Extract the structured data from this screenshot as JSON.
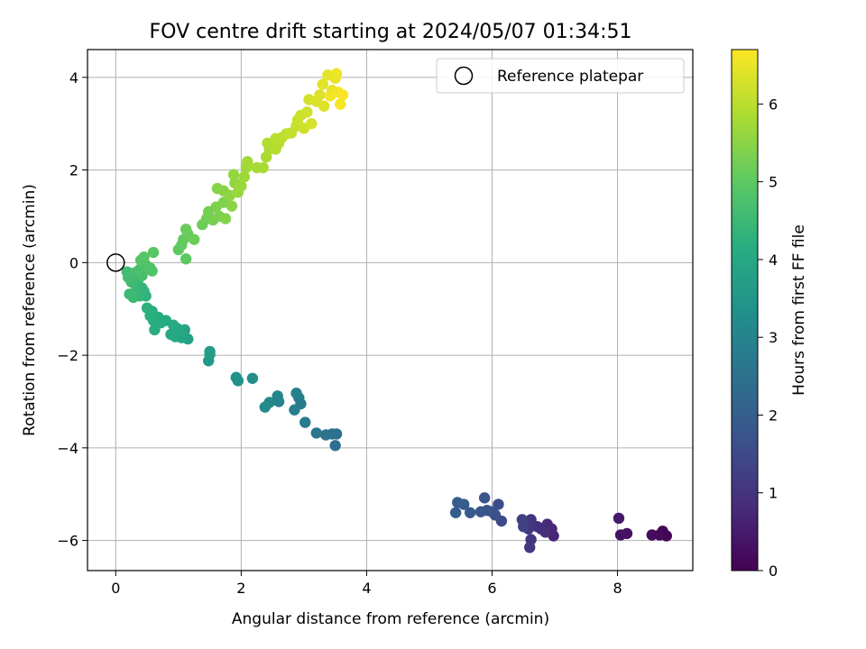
{
  "chart_data": {
    "type": "scatter",
    "title": "FOV centre drift starting at 2024/05/07 01:34:51",
    "xlabel": "Angular distance from reference (arcmin)",
    "ylabel": "Rotation from reference (arcmin)",
    "xlim": [
      -0.45,
      9.2
    ],
    "ylim": [
      -6.65,
      4.6
    ],
    "xticks": [
      0,
      2,
      4,
      6,
      8
    ],
    "yticks": [
      -6,
      -4,
      -2,
      0,
      2,
      4
    ],
    "xtick_labels": [
      "0",
      "2",
      "4",
      "6",
      "8"
    ],
    "ytick_labels": [
      "−6",
      "−4",
      "−2",
      "0",
      "2",
      "4"
    ],
    "grid": true,
    "legend": {
      "placement": "top-right",
      "entries": [
        {
          "label": "Reference platepar",
          "marker": "open-circle"
        }
      ]
    },
    "colorbar": {
      "label": "Hours from first FF file",
      "colormap": "viridis",
      "range": [
        0,
        6.7
      ],
      "ticks": [
        0,
        1,
        2,
        3,
        4,
        5,
        6
      ],
      "tick_labels": [
        "0",
        "1",
        "2",
        "3",
        "4",
        "5",
        "6"
      ]
    },
    "reference_point": {
      "x": 0,
      "y": 0
    },
    "points": [
      {
        "x": 8.78,
        "y": -5.9,
        "t": 0.05
      },
      {
        "x": 8.72,
        "y": -5.8,
        "t": 0.1
      },
      {
        "x": 8.67,
        "y": -5.88,
        "t": 0.15
      },
      {
        "x": 8.55,
        "y": -5.88,
        "t": 0.2
      },
      {
        "x": 8.15,
        "y": -5.85,
        "t": 0.3
      },
      {
        "x": 8.05,
        "y": -5.88,
        "t": 0.35
      },
      {
        "x": 8.02,
        "y": -5.52,
        "t": 0.45
      },
      {
        "x": 6.98,
        "y": -5.9,
        "t": 0.7
      },
      {
        "x": 6.95,
        "y": -5.75,
        "t": 0.75
      },
      {
        "x": 6.88,
        "y": -5.65,
        "t": 0.8
      },
      {
        "x": 6.85,
        "y": -5.82,
        "t": 0.85
      },
      {
        "x": 6.78,
        "y": -5.75,
        "t": 0.9
      },
      {
        "x": 6.72,
        "y": -5.7,
        "t": 0.95
      },
      {
        "x": 6.62,
        "y": -5.55,
        "t": 1.0
      },
      {
        "x": 6.62,
        "y": -5.98,
        "t": 1.05
      },
      {
        "x": 6.6,
        "y": -6.15,
        "t": 1.1
      },
      {
        "x": 6.58,
        "y": -5.75,
        "t": 1.15
      },
      {
        "x": 6.52,
        "y": -5.62,
        "t": 1.2
      },
      {
        "x": 6.5,
        "y": -5.7,
        "t": 1.25
      },
      {
        "x": 6.48,
        "y": -5.55,
        "t": 1.3
      },
      {
        "x": 6.15,
        "y": -5.58,
        "t": 1.5
      },
      {
        "x": 6.1,
        "y": -5.22,
        "t": 1.55
      },
      {
        "x": 6.05,
        "y": -5.45,
        "t": 1.6
      },
      {
        "x": 6.0,
        "y": -5.38,
        "t": 1.65
      },
      {
        "x": 5.92,
        "y": -5.35,
        "t": 1.7
      },
      {
        "x": 5.88,
        "y": -5.08,
        "t": 1.75
      },
      {
        "x": 5.82,
        "y": -5.38,
        "t": 1.8
      },
      {
        "x": 5.65,
        "y": -5.4,
        "t": 1.85
      },
      {
        "x": 5.55,
        "y": -5.22,
        "t": 1.9
      },
      {
        "x": 5.45,
        "y": -5.18,
        "t": 1.95
      },
      {
        "x": 5.42,
        "y": -5.4,
        "t": 2.0
      },
      {
        "x": 3.5,
        "y": -3.95,
        "t": 2.4
      },
      {
        "x": 3.52,
        "y": -3.7,
        "t": 2.45
      },
      {
        "x": 3.45,
        "y": -3.7,
        "t": 2.5
      },
      {
        "x": 3.35,
        "y": -3.72,
        "t": 2.55
      },
      {
        "x": 3.2,
        "y": -3.68,
        "t": 2.6
      },
      {
        "x": 3.02,
        "y": -3.45,
        "t": 2.7
      },
      {
        "x": 2.95,
        "y": -3.05,
        "t": 2.75
      },
      {
        "x": 2.92,
        "y": -2.92,
        "t": 2.8
      },
      {
        "x": 2.85,
        "y": -3.18,
        "t": 2.85
      },
      {
        "x": 2.88,
        "y": -2.82,
        "t": 2.9
      },
      {
        "x": 2.6,
        "y": -3.0,
        "t": 3.0
      },
      {
        "x": 2.58,
        "y": -2.88,
        "t": 3.05
      },
      {
        "x": 2.45,
        "y": -3.02,
        "t": 3.1
      },
      {
        "x": 2.38,
        "y": -3.12,
        "t": 3.15
      },
      {
        "x": 2.18,
        "y": -2.5,
        "t": 3.3
      },
      {
        "x": 1.95,
        "y": -2.55,
        "t": 3.35
      },
      {
        "x": 1.92,
        "y": -2.48,
        "t": 3.4
      },
      {
        "x": 1.48,
        "y": -2.12,
        "t": 3.6
      },
      {
        "x": 1.5,
        "y": -1.92,
        "t": 3.65
      },
      {
        "x": 1.5,
        "y": -1.98,
        "t": 3.7
      },
      {
        "x": 1.15,
        "y": -1.65,
        "t": 3.85
      },
      {
        "x": 1.1,
        "y": -1.45,
        "t": 3.9
      },
      {
        "x": 1.05,
        "y": -1.62,
        "t": 3.92
      },
      {
        "x": 1.02,
        "y": -1.5,
        "t": 3.95
      },
      {
        "x": 0.98,
        "y": -1.42,
        "t": 3.98
      },
      {
        "x": 0.95,
        "y": -1.6,
        "t": 4.0
      },
      {
        "x": 0.88,
        "y": -1.55,
        "t": 4.02
      },
      {
        "x": 0.92,
        "y": -1.35,
        "t": 4.05
      },
      {
        "x": 0.8,
        "y": -1.25,
        "t": 4.08
      },
      {
        "x": 0.72,
        "y": -1.3,
        "t": 4.1
      },
      {
        "x": 0.68,
        "y": -1.18,
        "t": 4.12
      },
      {
        "x": 0.62,
        "y": -1.45,
        "t": 4.15
      },
      {
        "x": 0.6,
        "y": -1.25,
        "t": 4.18
      },
      {
        "x": 0.58,
        "y": -1.05,
        "t": 4.2
      },
      {
        "x": 0.55,
        "y": -1.15,
        "t": 4.22
      },
      {
        "x": 0.5,
        "y": -0.98,
        "t": 4.25
      },
      {
        "x": 0.48,
        "y": -0.72,
        "t": 4.3
      },
      {
        "x": 0.45,
        "y": -0.62,
        "t": 4.33
      },
      {
        "x": 0.42,
        "y": -0.55,
        "t": 4.36
      },
      {
        "x": 0.38,
        "y": -0.72,
        "t": 4.4
      },
      {
        "x": 0.35,
        "y": -0.42,
        "t": 4.43
      },
      {
        "x": 0.32,
        "y": -0.62,
        "t": 4.46
      },
      {
        "x": 0.28,
        "y": -0.75,
        "t": 4.5
      },
      {
        "x": 0.22,
        "y": -0.68,
        "t": 4.53
      },
      {
        "x": 0.25,
        "y": -0.42,
        "t": 4.56
      },
      {
        "x": 0.2,
        "y": -0.32,
        "t": 4.6
      },
      {
        "x": 0.18,
        "y": -0.2,
        "t": 4.63
      },
      {
        "x": 0.3,
        "y": -0.22,
        "t": 4.66
      },
      {
        "x": 0.42,
        "y": -0.28,
        "t": 4.7
      },
      {
        "x": 0.38,
        "y": -0.15,
        "t": 4.73
      },
      {
        "x": 0.48,
        "y": -0.05,
        "t": 4.76
      },
      {
        "x": 0.55,
        "y": -0.12,
        "t": 4.8
      },
      {
        "x": 0.58,
        "y": -0.18,
        "t": 4.83
      },
      {
        "x": 0.4,
        "y": 0.05,
        "t": 4.86
      },
      {
        "x": 0.45,
        "y": 0.12,
        "t": 4.9
      },
      {
        "x": 0.6,
        "y": 0.22,
        "t": 4.93
      },
      {
        "x": 1.12,
        "y": 0.08,
        "t": 5.0
      },
      {
        "x": 1.0,
        "y": 0.28,
        "t": 5.03
      },
      {
        "x": 1.05,
        "y": 0.38,
        "t": 5.06
      },
      {
        "x": 1.08,
        "y": 0.5,
        "t": 5.09
      },
      {
        "x": 1.15,
        "y": 0.62,
        "t": 5.12
      },
      {
        "x": 1.12,
        "y": 0.72,
        "t": 5.15
      },
      {
        "x": 1.25,
        "y": 0.5,
        "t": 5.18
      },
      {
        "x": 1.38,
        "y": 0.82,
        "t": 5.21
      },
      {
        "x": 1.45,
        "y": 0.95,
        "t": 5.24
      },
      {
        "x": 1.48,
        "y": 1.1,
        "t": 5.27
      },
      {
        "x": 1.55,
        "y": 0.92,
        "t": 5.3
      },
      {
        "x": 1.65,
        "y": 1.0,
        "t": 5.33
      },
      {
        "x": 1.6,
        "y": 1.2,
        "t": 5.36
      },
      {
        "x": 1.72,
        "y": 1.3,
        "t": 5.39
      },
      {
        "x": 1.75,
        "y": 0.95,
        "t": 5.42
      },
      {
        "x": 1.62,
        "y": 1.6,
        "t": 5.45
      },
      {
        "x": 1.72,
        "y": 1.55,
        "t": 5.48
      },
      {
        "x": 1.85,
        "y": 1.22,
        "t": 5.51
      },
      {
        "x": 1.82,
        "y": 1.45,
        "t": 5.54
      },
      {
        "x": 1.9,
        "y": 1.72,
        "t": 5.57
      },
      {
        "x": 1.88,
        "y": 1.9,
        "t": 5.6
      },
      {
        "x": 1.95,
        "y": 1.52,
        "t": 5.63
      },
      {
        "x": 2.0,
        "y": 1.65,
        "t": 5.66
      },
      {
        "x": 2.05,
        "y": 1.85,
        "t": 5.69
      },
      {
        "x": 2.08,
        "y": 2.05,
        "t": 5.72
      },
      {
        "x": 2.1,
        "y": 2.18,
        "t": 5.75
      },
      {
        "x": 2.25,
        "y": 2.05,
        "t": 5.78
      },
      {
        "x": 2.35,
        "y": 2.05,
        "t": 5.81
      },
      {
        "x": 2.4,
        "y": 2.28,
        "t": 5.84
      },
      {
        "x": 2.45,
        "y": 2.45,
        "t": 5.87
      },
      {
        "x": 2.42,
        "y": 2.58,
        "t": 5.9
      },
      {
        "x": 2.55,
        "y": 2.45,
        "t": 5.93
      },
      {
        "x": 2.6,
        "y": 2.58,
        "t": 5.96
      },
      {
        "x": 2.55,
        "y": 2.68,
        "t": 5.99
      },
      {
        "x": 2.65,
        "y": 2.7,
        "t": 6.02
      },
      {
        "x": 2.72,
        "y": 2.78,
        "t": 6.05
      },
      {
        "x": 2.8,
        "y": 2.8,
        "t": 6.08
      },
      {
        "x": 2.88,
        "y": 2.95,
        "t": 6.11
      },
      {
        "x": 2.9,
        "y": 3.08,
        "t": 6.14
      },
      {
        "x": 2.95,
        "y": 3.18,
        "t": 6.17
      },
      {
        "x": 3.0,
        "y": 2.9,
        "t": 6.2
      },
      {
        "x": 3.05,
        "y": 3.25,
        "t": 6.23
      },
      {
        "x": 3.08,
        "y": 3.52,
        "t": 6.26
      },
      {
        "x": 3.12,
        "y": 3.0,
        "t": 6.29
      },
      {
        "x": 3.2,
        "y": 3.48,
        "t": 6.32
      },
      {
        "x": 3.25,
        "y": 3.62,
        "t": 6.35
      },
      {
        "x": 3.32,
        "y": 3.38,
        "t": 6.38
      },
      {
        "x": 3.3,
        "y": 3.85,
        "t": 6.41
      },
      {
        "x": 3.38,
        "y": 4.05,
        "t": 6.44
      },
      {
        "x": 3.45,
        "y": 3.72,
        "t": 6.47
      },
      {
        "x": 3.5,
        "y": 3.98,
        "t": 6.5
      },
      {
        "x": 3.52,
        "y": 4.08,
        "t": 6.53
      },
      {
        "x": 3.42,
        "y": 3.6,
        "t": 6.56
      },
      {
        "x": 3.55,
        "y": 3.68,
        "t": 6.59
      },
      {
        "x": 3.58,
        "y": 3.42,
        "t": 6.62
      },
      {
        "x": 3.62,
        "y": 3.62,
        "t": 6.65
      }
    ]
  }
}
